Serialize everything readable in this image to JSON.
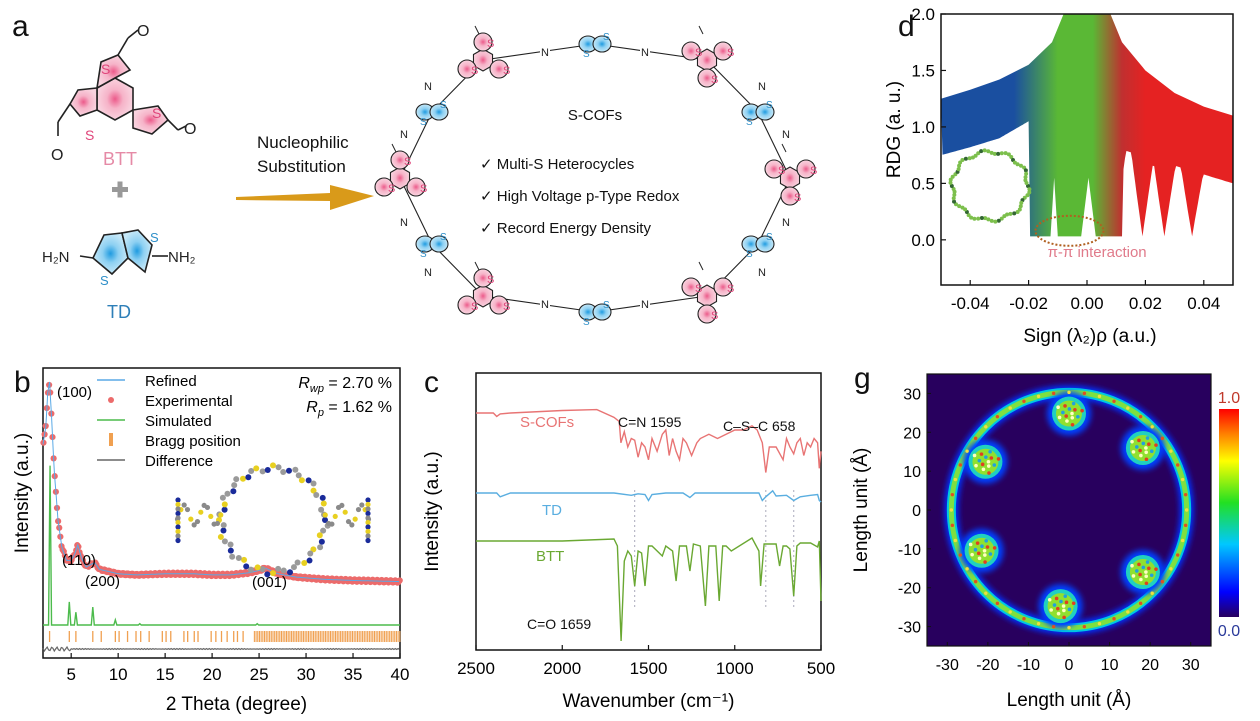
{
  "panels": {
    "a": {
      "letter": "a",
      "reactant1": "BTT",
      "reactant2": "TD",
      "plus": "+",
      "reaction_label_line1": "Nucleophilic",
      "reaction_label_line2": "Substitution",
      "product_title": "S-COFs",
      "features": [
        "✓ Multi-S Heterocycles",
        "✓ High Voltage p-Type Redox",
        "✓  Record Energy Density"
      ],
      "atoms": {
        "S": "S",
        "N": "N",
        "O": "O",
        "H2N": "H₂N",
        "NH2": "NH₂"
      },
      "colors": {
        "btt": "#e0447a",
        "td": "#2e8fc9",
        "arrow": "#d99a1a",
        "plus": "#999999"
      }
    },
    "b": {
      "letter": "b"
    },
    "c": {
      "letter": "c"
    },
    "d": {
      "letter": "d"
    },
    "g": {
      "letter": "g"
    }
  },
  "chart_data": [
    {
      "panel": "b",
      "type": "line",
      "title": "",
      "xlabel": "2 Theta (degree)",
      "ylabel": "Intensity (a.u.)",
      "xlim": [
        2,
        40
      ],
      "xticks": [
        5,
        10,
        15,
        20,
        25,
        30,
        35,
        40
      ],
      "legend": [
        "Refined",
        "Experimental",
        "Simulated",
        "Bragg position",
        "Difference"
      ],
      "legend_placement": "top",
      "stats": [
        "R_wp = 2.70 %",
        "R_p = 1.62 %"
      ],
      "stats_parts": [
        {
          "sym": "R",
          "sub": "wp",
          "val": " = 2.70 %"
        },
        {
          "sym": "R",
          "sub": "p",
          "val": " = 1.62 %"
        }
      ],
      "peak_labels": [
        {
          "text": "(100)",
          "x": 2.7
        },
        {
          "text": "(110)",
          "x": 5.6
        },
        {
          "text": "(200)",
          "x": 7.5
        },
        {
          "text": "(001)",
          "x": 25.6
        }
      ],
      "experimental": {
        "x": [
          2.0,
          2.3,
          2.5,
          2.7,
          2.9,
          3.2,
          3.6,
          4.0,
          4.5,
          5.0,
          5.4,
          5.7,
          6.1,
          6.6,
          7.0,
          7.5,
          8.0,
          9.0,
          10,
          12,
          15,
          18,
          20,
          22,
          24,
          25,
          25.7,
          27,
          29,
          32,
          35,
          40
        ],
        "y": [
          0.72,
          0.8,
          0.95,
          1.0,
          0.85,
          0.6,
          0.38,
          0.26,
          0.2,
          0.2,
          0.23,
          0.27,
          0.21,
          0.17,
          0.18,
          0.19,
          0.16,
          0.15,
          0.14,
          0.135,
          0.14,
          0.14,
          0.135,
          0.135,
          0.145,
          0.155,
          0.165,
          0.14,
          0.125,
          0.115,
          0.11,
          0.105
        ]
      },
      "simulated_peaks": [
        {
          "x": 2.75,
          "h": 0.62
        },
        {
          "x": 4.8,
          "h": 0.09
        },
        {
          "x": 5.5,
          "h": 0.05
        },
        {
          "x": 7.3,
          "h": 0.07
        },
        {
          "x": 9.7,
          "h": 0.02
        },
        {
          "x": 12.3,
          "h": 0.005
        },
        {
          "x": 24.8,
          "h": 0.005
        }
      ],
      "bragg_positions": [
        2.7,
        4.8,
        5.5,
        7.3,
        8.2,
        9.7,
        10.1,
        11.0,
        11.9,
        12.4,
        13.3,
        14.7,
        15.1,
        15.6,
        17.0,
        17.4,
        18.1,
        18.5,
        19.9,
        20.4,
        21.0,
        21.6,
        22.3,
        22.7,
        23.3
      ],
      "bragg_dense_range": [
        24.5,
        40
      ],
      "colors": {
        "experimental": "#ec6b6b",
        "refined": "#5aa9e6",
        "simulated": "#4cbb4c",
        "bragg": "#f0a050",
        "difference": "#666666"
      }
    },
    {
      "panel": "c",
      "type": "line",
      "title": "",
      "xlabel": "Wavenumber (cm⁻¹)",
      "ylabel": "Intensity (a.u.)",
      "xlim": [
        2500,
        500
      ],
      "xticks": [
        2500,
        2000,
        1500,
        1000,
        500
      ],
      "series": [
        {
          "name": "S-COFs",
          "color": "#e87474",
          "x": [
            2500,
            2400,
            2380,
            2360,
            2300,
            2000,
            1800,
            1700,
            1670,
            1660,
            1640,
            1620,
            1600,
            1580,
            1560,
            1540,
            1520,
            1500,
            1480,
            1450,
            1420,
            1400,
            1380,
            1360,
            1340,
            1320,
            1300,
            1280,
            1250,
            1220,
            1200,
            1150,
            1100,
            1050,
            1000,
            950,
            900,
            870,
            840,
            820,
            800,
            760,
            720,
            700,
            680,
            658,
            640,
            620,
            600,
            580,
            560,
            540,
            520,
            510,
            500
          ],
          "y": [
            0.0,
            0.0,
            0.04,
            0.01,
            0.0,
            -0.03,
            -0.04,
            0.05,
            0.1,
            0.35,
            0.22,
            0.4,
            0.3,
            0.32,
            0.52,
            0.35,
            0.4,
            0.55,
            0.3,
            0.45,
            0.25,
            0.2,
            0.5,
            0.3,
            0.45,
            0.55,
            0.3,
            0.35,
            0.5,
            0.35,
            0.3,
            0.25,
            0.3,
            0.25,
            0.2,
            0.2,
            0.15,
            0.2,
            0.35,
            0.7,
            0.4,
            0.4,
            0.55,
            0.3,
            0.4,
            0.48,
            0.35,
            0.3,
            0.5,
            0.35,
            0.4,
            0.3,
            0.35,
            0.65,
            0.45
          ]
        },
        {
          "name": "TD",
          "color": "#5aaee0",
          "x": [
            2500,
            2380,
            2360,
            2300,
            2000,
            1700,
            1600,
            1560,
            1520,
            1500,
            1480,
            1400,
            1300,
            1260,
            1230,
            1000,
            860,
            840,
            820,
            780,
            760,
            700,
            658,
            620,
            560,
            520,
            510,
            500
          ],
          "y": [
            0.0,
            0.0,
            0.05,
            0.0,
            0.0,
            0.0,
            0.03,
            0.01,
            0.02,
            0.1,
            0.02,
            0.0,
            0.0,
            0.06,
            0.0,
            0.0,
            0.0,
            0.1,
            0.05,
            -0.03,
            0.04,
            0.03,
            0.1,
            0.05,
            0.03,
            0.02,
            0.1,
            0.12
          ]
        },
        {
          "name": "BTT",
          "color": "#6aa832",
          "x": [
            2500,
            2000,
            1700,
            1680,
            1659,
            1640,
            1620,
            1600,
            1580,
            1560,
            1540,
            1520,
            1500,
            1480,
            1420,
            1400,
            1360,
            1340,
            1320,
            1280,
            1260,
            1240,
            1200,
            1170,
            1150,
            1110,
            1090,
            1070,
            1050,
            1020,
            900,
            860,
            850,
            830,
            760,
            740,
            720,
            700,
            680,
            658,
            640,
            620,
            560,
            520,
            510,
            500
          ],
          "y": [
            0.0,
            0.0,
            -0.02,
            0.05,
            1.0,
            0.2,
            0.1,
            0.15,
            0.45,
            0.1,
            0.12,
            0.45,
            0.05,
            0.05,
            0.15,
            0.05,
            0.1,
            0.4,
            0.05,
            0.05,
            0.3,
            0.03,
            0.05,
            0.65,
            0.05,
            0.05,
            0.6,
            0.05,
            0.05,
            0.1,
            -0.03,
            0.1,
            0.45,
            0.03,
            0.03,
            0.25,
            0.05,
            0.05,
            0.08,
            0.55,
            0.05,
            0.02,
            0.02,
            0.06,
            0.0,
            0.6
          ]
        }
      ],
      "annotations": [
        {
          "text": "C=N 1595",
          "x": 1595
        },
        {
          "text": "C–S–C 658",
          "x": 658
        },
        {
          "text": "C=O 1659",
          "x": 1659
        }
      ],
      "guide_lines": [
        1580,
        820,
        658
      ]
    },
    {
      "panel": "d",
      "type": "scatter",
      "title": "",
      "xlabel": "Sign (λ₂)ρ (a.u.)",
      "ylabel": "RDG (a. u.)",
      "xlim": [
        -0.05,
        0.05
      ],
      "ylim": [
        -0.4,
        2.0
      ],
      "xticks": [
        -0.04,
        -0.02,
        0.0,
        0.02,
        0.04
      ],
      "yticks": [
        0.0,
        0.5,
        1.0,
        1.5,
        2.0
      ],
      "annotation": "π-π interaction",
      "colors": {
        "attractive": "#1a4fa0",
        "vdw": "#5ab835",
        "repulsive": "#e52222",
        "annotation": "#e07a8a",
        "ellipse": "#b06020"
      },
      "band_upper": {
        "x": [
          -0.05,
          -0.04,
          -0.03,
          -0.02,
          -0.012,
          -0.008,
          0.008,
          0.012,
          0.02,
          0.03,
          0.04,
          0.05
        ],
        "y": [
          1.25,
          1.33,
          1.42,
          1.55,
          1.75,
          2.0,
          2.0,
          1.75,
          1.5,
          1.3,
          1.18,
          1.1
        ]
      },
      "band_lower": {
        "x": [
          -0.05,
          -0.04,
          -0.03,
          -0.02,
          0.05
        ],
        "y": [
          0.75,
          0.82,
          0.9,
          1.05,
          0.5
        ]
      },
      "spikes_to_zero": [
        -0.015,
        -0.01,
        0.0,
        0.005,
        0.0095,
        0.019,
        0.0265,
        0.036
      ]
    },
    {
      "panel": "g",
      "type": "heatmap",
      "title": "",
      "xlabel": "Length unit (Å)",
      "ylabel": "Length unit (Å)",
      "xlim": [
        -35,
        35
      ],
      "ylim": [
        -35,
        35
      ],
      "xticks": [
        -30,
        -20,
        -10,
        0,
        10,
        20,
        30
      ],
      "yticks": [
        -30,
        -20,
        -10,
        0,
        10,
        20,
        30
      ],
      "colorbar": {
        "min": 0.0,
        "max": 1.0,
        "min_label": "0.0",
        "max_label": "1.0"
      },
      "ring_radius": 29,
      "cluster_angles_deg": [
        40,
        90,
        150,
        205,
        265,
        320
      ],
      "colors": {
        "background": "#28005e",
        "max_label": "#c0392b",
        "min_label": "#2a3a9a"
      }
    }
  ]
}
